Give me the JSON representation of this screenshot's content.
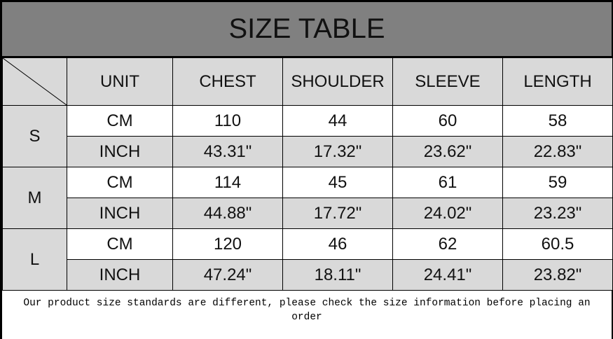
{
  "title": "SIZE TABLE",
  "headers": [
    "UNIT",
    "CHEST",
    "SHOULDER",
    "SLEEVE",
    "LENGTH"
  ],
  "sizes": [
    {
      "size": "S",
      "cm": {
        "unit": "CM",
        "values": [
          "110",
          "44",
          "60",
          "58"
        ]
      },
      "inch": {
        "unit": "INCH",
        "values": [
          "43.31\"",
          "17.32\"",
          "23.62\"",
          "22.83\""
        ]
      }
    },
    {
      "size": "M",
      "cm": {
        "unit": "CM",
        "values": [
          "114",
          "45",
          "61",
          "59"
        ]
      },
      "inch": {
        "unit": "INCH",
        "values": [
          "44.88\"",
          "17.72\"",
          "24.02\"",
          "23.23\""
        ]
      }
    },
    {
      "size": "L",
      "cm": {
        "unit": "CM",
        "values": [
          "120",
          "46",
          "62",
          "60.5"
        ]
      },
      "inch": {
        "unit": "INCH",
        "values": [
          "47.24\"",
          "18.11\"",
          "24.41\"",
          "23.82\""
        ]
      }
    }
  ],
  "note": "Our product size standards are different, please check the size information before placing an order",
  "colors": {
    "title_bg": "#808080",
    "header_bg": "#d9d9d9"
  }
}
